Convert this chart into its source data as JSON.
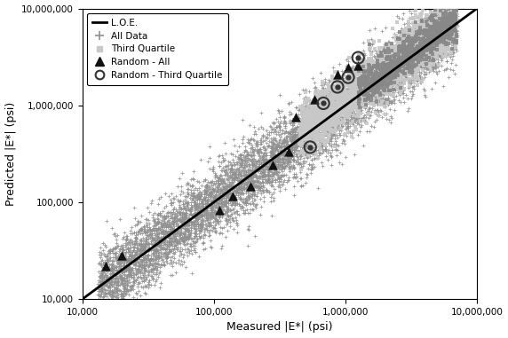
{
  "title": "",
  "xlabel": "Measured |E*| (psi)",
  "ylabel": "Predicted |E*| (psi)",
  "xmin": 10000,
  "xmax": 10000000,
  "ymin": 10000,
  "ymax": 10000000,
  "loe_label": "L.O.E.",
  "all_data_label": "All Data",
  "third_quartile_label": "Third Quartile",
  "random_all_label": "Random - All",
  "random_tq_label": "Random - Third Quartile",
  "all_data_color": "#909090",
  "third_quartile_color": "#c8c8c8",
  "third_quartile_dark_color": "#888888",
  "random_all_color": "#111111",
  "random_tq_color": "#333333",
  "n_all": 7400,
  "seed": 42,
  "random_all_points": [
    [
      15000,
      22000
    ],
    [
      20000,
      28000
    ],
    [
      110000,
      82000
    ],
    [
      140000,
      115000
    ],
    [
      190000,
      145000
    ],
    [
      280000,
      240000
    ],
    [
      370000,
      330000
    ],
    [
      420000,
      750000
    ],
    [
      580000,
      1150000
    ],
    [
      870000,
      2100000
    ],
    [
      1050000,
      2450000
    ],
    [
      1250000,
      2550000
    ]
  ],
  "random_tq_points": [
    [
      540000,
      370000
    ],
    [
      680000,
      1050000
    ],
    [
      870000,
      1550000
    ],
    [
      1050000,
      1950000
    ],
    [
      1250000,
      3100000
    ]
  ]
}
